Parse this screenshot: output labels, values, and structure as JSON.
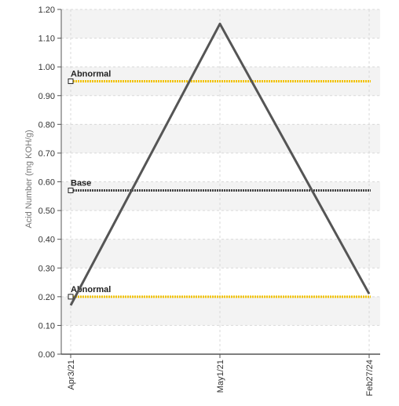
{
  "chart_data": {
    "type": "line",
    "title": "",
    "xlabel": "",
    "ylabel": "Acid Number (mg KOH/g)",
    "ylim": [
      0,
      1.2
    ],
    "yticks": [
      "0.00",
      "0.10",
      "0.20",
      "0.30",
      "0.40",
      "0.50",
      "0.60",
      "0.70",
      "0.80",
      "0.90",
      "1.00",
      "1.10",
      "1.20"
    ],
    "categories": [
      "Apr3/21",
      "May1/21",
      "Feb27/24"
    ],
    "series": [
      {
        "values": [
          0.17,
          1.15,
          0.21
        ],
        "color": "#555555"
      }
    ],
    "reference_lines": [
      {
        "label": "Abnormal",
        "value": 0.95,
        "color": "#f2c200",
        "style": "dotted"
      },
      {
        "label": "Base",
        "value": 0.57,
        "color": "#444444",
        "style": "dotted"
      },
      {
        "label": "Abnormal",
        "value": 0.2,
        "color": "#f2c200",
        "style": "dotted"
      }
    ],
    "grid": true,
    "legend": "none"
  }
}
